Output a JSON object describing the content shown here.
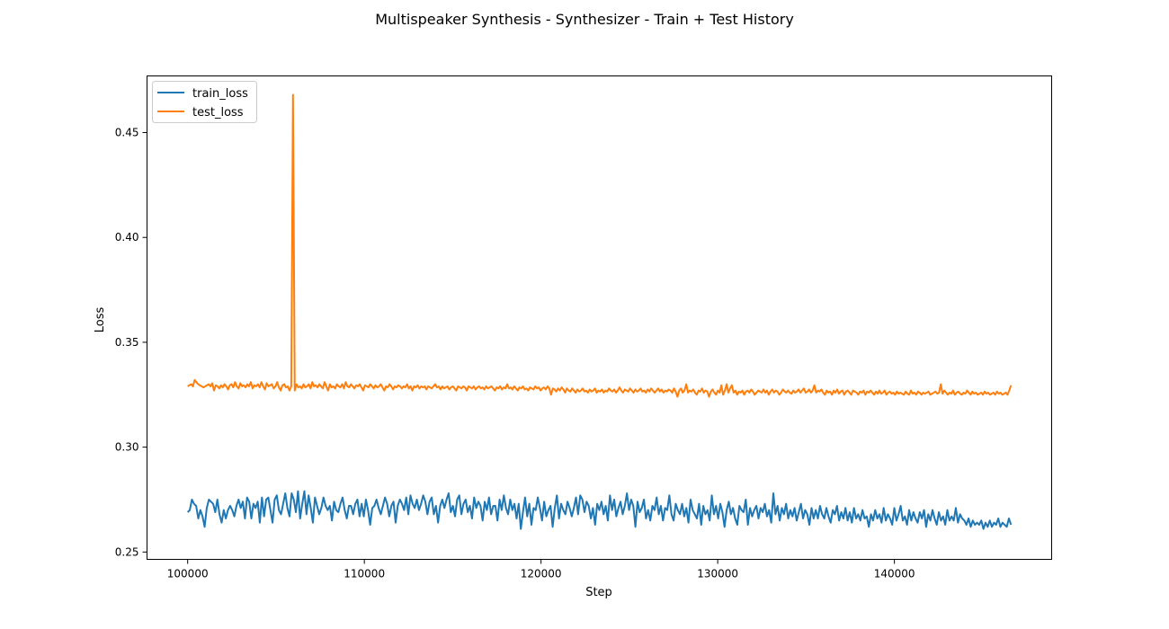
{
  "chart_data": {
    "type": "line",
    "title": "Multispeaker Synthesis - Synthesizer - Train + Test History",
    "xlabel": "Step",
    "ylabel": "Loss",
    "xlim": [
      97700,
      148900
    ],
    "ylim": [
      0.2465,
      0.477
    ],
    "xticks": [
      100000,
      110000,
      120000,
      130000,
      140000
    ],
    "xtick_labels": [
      "100000",
      "110000",
      "120000",
      "130000",
      "140000"
    ],
    "yticks": [
      0.25,
      0.3,
      0.35,
      0.4,
      0.45
    ],
    "ytick_labels": [
      "0.25",
      "0.30",
      "0.35",
      "0.40",
      "0.45"
    ],
    "grid": false,
    "legend_position": "top-left",
    "series": [
      {
        "name": "train_loss",
        "color": "#1f77b4",
        "x_start": 100000,
        "x_end": 146600,
        "values": [
          0.269,
          0.27,
          0.275,
          0.273,
          0.272,
          0.266,
          0.27,
          0.267,
          0.262,
          0.271,
          0.275,
          0.274,
          0.273,
          0.269,
          0.275,
          0.268,
          0.264,
          0.27,
          0.266,
          0.27,
          0.272,
          0.27,
          0.267,
          0.272,
          0.275,
          0.271,
          0.274,
          0.266,
          0.276,
          0.274,
          0.266,
          0.273,
          0.271,
          0.274,
          0.264,
          0.276,
          0.267,
          0.275,
          0.276,
          0.27,
          0.264,
          0.275,
          0.277,
          0.27,
          0.268,
          0.273,
          0.278,
          0.271,
          0.267,
          0.278,
          0.275,
          0.269,
          0.279,
          0.266,
          0.273,
          0.279,
          0.268,
          0.277,
          0.271,
          0.264,
          0.276,
          0.272,
          0.268,
          0.271,
          0.276,
          0.272,
          0.27,
          0.272,
          0.265,
          0.274,
          0.27,
          0.269,
          0.273,
          0.276,
          0.27,
          0.266,
          0.272,
          0.272,
          0.268,
          0.273,
          0.275,
          0.267,
          0.273,
          0.267,
          0.275,
          0.27,
          0.263,
          0.271,
          0.272,
          0.275,
          0.271,
          0.268,
          0.272,
          0.276,
          0.273,
          0.267,
          0.272,
          0.274,
          0.264,
          0.272,
          0.275,
          0.273,
          0.27,
          0.276,
          0.268,
          0.277,
          0.273,
          0.271,
          0.275,
          0.27,
          0.273,
          0.277,
          0.274,
          0.268,
          0.274,
          0.276,
          0.268,
          0.272,
          0.264,
          0.272,
          0.275,
          0.271,
          0.275,
          0.278,
          0.269,
          0.272,
          0.267,
          0.275,
          0.277,
          0.268,
          0.273,
          0.275,
          0.269,
          0.272,
          0.266,
          0.276,
          0.271,
          0.274,
          0.272,
          0.265,
          0.274,
          0.27,
          0.276,
          0.268,
          0.272,
          0.272,
          0.265,
          0.275,
          0.27,
          0.277,
          0.271,
          0.268,
          0.275,
          0.27,
          0.273,
          0.266,
          0.273,
          0.261,
          0.269,
          0.276,
          0.267,
          0.273,
          0.263,
          0.271,
          0.27,
          0.276,
          0.271,
          0.265,
          0.274,
          0.267,
          0.27,
          0.272,
          0.262,
          0.271,
          0.277,
          0.266,
          0.273,
          0.27,
          0.268,
          0.274,
          0.271,
          0.267,
          0.271,
          0.276,
          0.268,
          0.277,
          0.275,
          0.269,
          0.274,
          0.272,
          0.266,
          0.271,
          0.263,
          0.273,
          0.27,
          0.274,
          0.268,
          0.272,
          0.265,
          0.277,
          0.27,
          0.275,
          0.267,
          0.271,
          0.274,
          0.268,
          0.272,
          0.278,
          0.27,
          0.275,
          0.272,
          0.262,
          0.274,
          0.269,
          0.271,
          0.275,
          0.266,
          0.27,
          0.265,
          0.272,
          0.27,
          0.276,
          0.268,
          0.272,
          0.265,
          0.271,
          0.27,
          0.277,
          0.268,
          0.265,
          0.273,
          0.27,
          0.268,
          0.273,
          0.267,
          0.271,
          0.264,
          0.275,
          0.27,
          0.268,
          0.266,
          0.273,
          0.263,
          0.272,
          0.268,
          0.27,
          0.265,
          0.277,
          0.268,
          0.272,
          0.266,
          0.273,
          0.269,
          0.262,
          0.27,
          0.274,
          0.268,
          0.271,
          0.266,
          0.263,
          0.272,
          0.27,
          0.269,
          0.275,
          0.263,
          0.271,
          0.267,
          0.27,
          0.272,
          0.266,
          0.271,
          0.269,
          0.273,
          0.267,
          0.27,
          0.264,
          0.278,
          0.268,
          0.272,
          0.265,
          0.271,
          0.268,
          0.273,
          0.266,
          0.27,
          0.267,
          0.271,
          0.265,
          0.269,
          0.273,
          0.266,
          0.27,
          0.268,
          0.263,
          0.271,
          0.266,
          0.27,
          0.266,
          0.272,
          0.268,
          0.266,
          0.271,
          0.267,
          0.264,
          0.27,
          0.268,
          0.272,
          0.265,
          0.269,
          0.266,
          0.271,
          0.265,
          0.269,
          0.264,
          0.271,
          0.266,
          0.268,
          0.265,
          0.27,
          0.266,
          0.267,
          0.262,
          0.268,
          0.265,
          0.27,
          0.266,
          0.268,
          0.264,
          0.271,
          0.265,
          0.268,
          0.266,
          0.263,
          0.271,
          0.265,
          0.268,
          0.272,
          0.265,
          0.267,
          0.263,
          0.27,
          0.265,
          0.269,
          0.266,
          0.264,
          0.269,
          0.266,
          0.27,
          0.262,
          0.268,
          0.265,
          0.27,
          0.266,
          0.263,
          0.269,
          0.265,
          0.267,
          0.263,
          0.27,
          0.265,
          0.267,
          0.265,
          0.271,
          0.264,
          0.268,
          0.266,
          0.265,
          0.263,
          0.266,
          0.262,
          0.265,
          0.263,
          0.264,
          0.263,
          0.265,
          0.261,
          0.264,
          0.262,
          0.265,
          0.262,
          0.264,
          0.263,
          0.266,
          0.262,
          0.264,
          0.263,
          0.262,
          0.266,
          0.263
        ]
      },
      {
        "name": "test_loss",
        "color": "#ff7f0e",
        "x_start": 100000,
        "x_end": 146600,
        "values": [
          0.329,
          0.3295,
          0.33,
          0.329,
          0.332,
          0.331,
          0.33,
          0.3295,
          0.329,
          0.3285,
          0.329,
          0.3295,
          0.33,
          0.329,
          0.3305,
          0.327,
          0.3295,
          0.329,
          0.328,
          0.3295,
          0.3285,
          0.33,
          0.329,
          0.3275,
          0.3295,
          0.33,
          0.3285,
          0.331,
          0.329,
          0.328,
          0.3305,
          0.329,
          0.3295,
          0.3285,
          0.33,
          0.329,
          0.331,
          0.328,
          0.3295,
          0.329,
          0.33,
          0.3285,
          0.331,
          0.329,
          0.3275,
          0.3305,
          0.329,
          0.3295,
          0.33,
          0.328,
          0.329,
          0.331,
          0.3285,
          0.327,
          0.3295,
          0.33,
          0.3285,
          0.329,
          0.327,
          0.329,
          0.468,
          0.327,
          0.33,
          0.3285,
          0.329,
          0.328,
          0.33,
          0.3285,
          0.329,
          0.33,
          0.328,
          0.331,
          0.329,
          0.3295,
          0.3285,
          0.33,
          0.329,
          0.328,
          0.331,
          0.329,
          0.327,
          0.33,
          0.3285,
          0.329,
          0.328,
          0.33,
          0.329,
          0.3285,
          0.33,
          0.328,
          0.331,
          0.329,
          0.3285,
          0.33,
          0.329,
          0.328,
          0.3295,
          0.329,
          0.33,
          0.3285,
          0.327,
          0.3295,
          0.329,
          0.3285,
          0.33,
          0.329,
          0.328,
          0.3295,
          0.3285,
          0.329,
          0.33,
          0.3285,
          0.327,
          0.329,
          0.3285,
          0.33,
          0.329,
          0.3275,
          0.329,
          0.3285,
          0.3295,
          0.329,
          0.328,
          0.329,
          0.3285,
          0.33,
          0.328,
          0.329,
          0.327,
          0.329,
          0.3285,
          0.3295,
          0.328,
          0.329,
          0.3285,
          0.329,
          0.3275,
          0.329,
          0.3285,
          0.328,
          0.329,
          0.33,
          0.3285,
          0.329,
          0.3275,
          0.329,
          0.328,
          0.3285,
          0.329,
          0.3275,
          0.3285,
          0.329,
          0.328,
          0.327,
          0.329,
          0.3285,
          0.328,
          0.329,
          0.3285,
          0.327,
          0.329,
          0.3285,
          0.328,
          0.329,
          0.3275,
          0.3285,
          0.329,
          0.328,
          0.3285,
          0.3275,
          0.329,
          0.328,
          0.3285,
          0.329,
          0.328,
          0.327,
          0.3285,
          0.328,
          0.329,
          0.3275,
          0.3285,
          0.328,
          0.33,
          0.328,
          0.3285,
          0.3275,
          0.329,
          0.328,
          0.327,
          0.3285,
          0.328,
          0.329,
          0.3275,
          0.328,
          0.327,
          0.3285,
          0.328,
          0.3275,
          0.329,
          0.328,
          0.3285,
          0.327,
          0.328,
          0.3285,
          0.3275,
          0.329,
          0.328,
          0.325,
          0.328,
          0.3275,
          0.3265,
          0.328,
          0.327,
          0.3285,
          0.3275,
          0.326,
          0.328,
          0.327,
          0.3265,
          0.328,
          0.327,
          0.326,
          0.3275,
          0.3265,
          0.327,
          0.328,
          0.3265,
          0.327,
          0.326,
          0.3275,
          0.3265,
          0.327,
          0.328,
          0.326,
          0.327,
          0.3265,
          0.3275,
          0.326,
          0.327,
          0.3265,
          0.328,
          0.327,
          0.3265,
          0.3275,
          0.326,
          0.327,
          0.3285,
          0.327,
          0.326,
          0.3275,
          0.327,
          0.3265,
          0.328,
          0.327,
          0.326,
          0.3275,
          0.3265,
          0.327,
          0.328,
          0.3265,
          0.327,
          0.326,
          0.3275,
          0.3265,
          0.328,
          0.327,
          0.326,
          0.327,
          0.328,
          0.3265,
          0.3275,
          0.326,
          0.327,
          0.3265,
          0.3275,
          0.327,
          0.326,
          0.328,
          0.3265,
          0.324,
          0.327,
          0.328,
          0.326,
          0.327,
          0.33,
          0.326,
          0.327,
          0.3265,
          0.3275,
          0.326,
          0.325,
          0.327,
          0.3265,
          0.328,
          0.326,
          0.327,
          0.3265,
          0.324,
          0.3265,
          0.3275,
          0.326,
          0.325,
          0.327,
          0.326,
          0.3295,
          0.325,
          0.327,
          0.33,
          0.326,
          0.328,
          0.3295,
          0.326,
          0.327,
          0.325,
          0.3265,
          0.326,
          0.327,
          0.325,
          0.3265,
          0.327,
          0.326,
          0.3275,
          0.3265,
          0.325,
          0.326,
          0.327,
          0.3265,
          0.326,
          0.3275,
          0.326,
          0.327,
          0.325,
          0.3265,
          0.3275,
          0.326,
          0.327,
          0.3265,
          0.325,
          0.326,
          0.3275,
          0.3265,
          0.326,
          0.327,
          0.326,
          0.3255,
          0.327,
          0.326,
          0.3265,
          0.3275,
          0.326,
          0.327,
          0.328,
          0.326,
          0.3265,
          0.3275,
          0.326,
          0.327,
          0.3295,
          0.326,
          0.327,
          0.3265,
          0.3275,
          0.326,
          0.325,
          0.327,
          0.326,
          0.3265,
          0.325,
          0.327,
          0.326,
          0.3275,
          0.3255,
          0.3265,
          0.327,
          0.325,
          0.3265,
          0.327,
          0.326,
          0.325,
          0.327,
          0.3265,
          0.326,
          0.325,
          0.3265,
          0.326,
          0.327,
          0.325,
          0.3265,
          0.326,
          0.327,
          0.326,
          0.325,
          0.3265,
          0.3255,
          0.327,
          0.3255,
          0.326,
          0.327,
          0.325,
          0.326,
          0.3265,
          0.3255,
          0.326,
          0.325,
          0.3265,
          0.3255,
          0.326,
          0.3255,
          0.325,
          0.3265,
          0.3255,
          0.325,
          0.327,
          0.3255,
          0.326,
          0.325,
          0.3265,
          0.326,
          0.325,
          0.326,
          0.3255,
          0.326,
          0.3265,
          0.325,
          0.3255,
          0.326,
          0.3265,
          0.3255,
          0.326,
          0.33,
          0.3255,
          0.327,
          0.326,
          0.325,
          0.326,
          0.3255,
          0.327,
          0.325,
          0.326,
          0.3265,
          0.3255,
          0.325,
          0.326,
          0.3255,
          0.327,
          0.326,
          0.325,
          0.3265,
          0.3255,
          0.326,
          0.325,
          0.3255,
          0.326,
          0.325,
          0.3265,
          0.3255,
          0.326,
          0.325,
          0.3255,
          0.326,
          0.325,
          0.3265,
          0.3255,
          0.326,
          0.325,
          0.3255,
          0.326,
          0.325,
          0.327,
          0.3295
        ]
      }
    ]
  }
}
